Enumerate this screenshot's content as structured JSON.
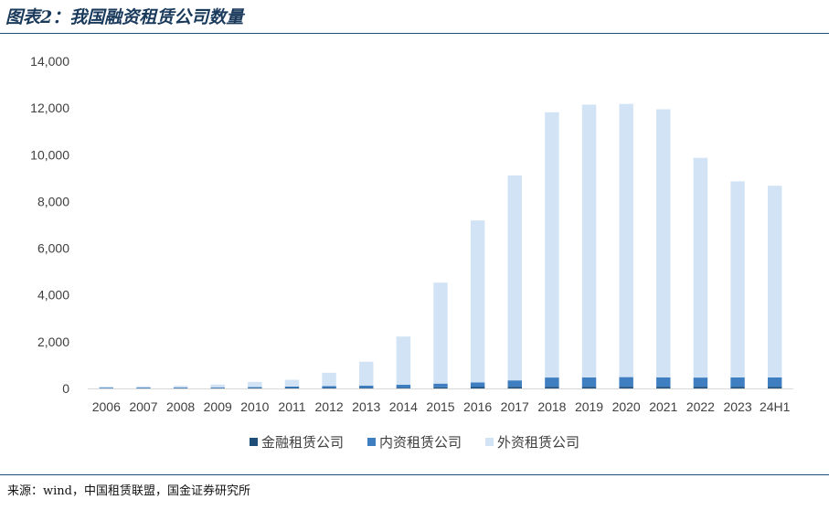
{
  "header": {
    "title": "图表2：我国融资租赁公司数量"
  },
  "source": {
    "text": "来源：wind，中国租赁联盟，国金证券研究所"
  },
  "chart_data": {
    "type": "bar",
    "stacked": true,
    "categories": [
      "2006",
      "2007",
      "2008",
      "2009",
      "2010",
      "2011",
      "2012",
      "2013",
      "2014",
      "2015",
      "2016",
      "2017",
      "2018",
      "2019",
      "2020",
      "2021",
      "2022",
      "2023",
      "24H1"
    ],
    "series": [
      {
        "name": "金融租赁公司",
        "color": "#1f4e79",
        "values": [
          6,
          9,
          12,
          12,
          17,
          20,
          20,
          23,
          30,
          47,
          59,
          69,
          70,
          70,
          71,
          71,
          72,
          71,
          71
        ]
      },
      {
        "name": "内资租赁公司",
        "color": "#3f7fc1",
        "values": [
          30,
          30,
          30,
          35,
          40,
          60,
          80,
          100,
          130,
          160,
          200,
          276,
          397,
          403,
          414,
          403,
          394,
          400,
          402
        ]
      },
      {
        "name": "外资租赁公司",
        "color": "#d1e3f5",
        "values": [
          44,
          51,
          70,
          118,
          223,
          290,
          570,
          1020,
          2060,
          4320,
          6930,
          8770,
          11350,
          11670,
          11690,
          11470,
          9400,
          8390,
          8200
        ]
      }
    ],
    "ylim": [
      0,
      14000
    ],
    "yticks": [
      0,
      2000,
      4000,
      6000,
      8000,
      10000,
      12000,
      14000
    ],
    "ytick_labels": [
      "0",
      "2,000",
      "4,000",
      "6,000",
      "8,000",
      "10,000",
      "12,000",
      "14,000"
    ],
    "grid": false,
    "legend": "bottom"
  }
}
